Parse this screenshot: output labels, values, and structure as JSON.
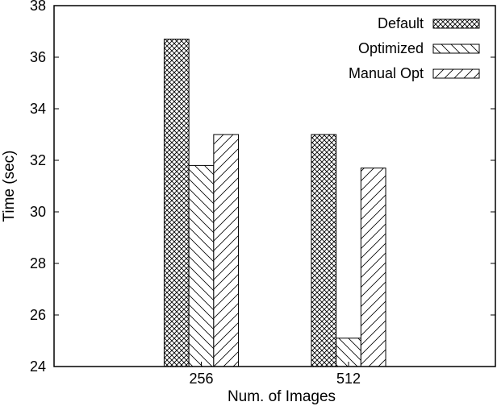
{
  "chart_data": {
    "type": "bar",
    "title": "",
    "xlabel": "Num. of Images",
    "ylabel": "Time (sec)",
    "ylim": [
      24,
      38
    ],
    "yticks": [
      24,
      26,
      28,
      30,
      32,
      34,
      36,
      38
    ],
    "categories": [
      "256",
      "512"
    ],
    "series": [
      {
        "name": "Default",
        "pattern": "crosshatch",
        "values": [
          36.7,
          33.0
        ]
      },
      {
        "name": "Optimized",
        "pattern": "diagonal-down",
        "values": [
          31.8,
          25.1
        ]
      },
      {
        "name": "Manual Opt",
        "pattern": "diagonal-up",
        "values": [
          33.0,
          31.7
        ]
      }
    ],
    "grid": false,
    "legend_position": "top-right"
  },
  "colors": {
    "frame": "#000000",
    "pattern_line": "#000000",
    "background": "#ffffff"
  }
}
